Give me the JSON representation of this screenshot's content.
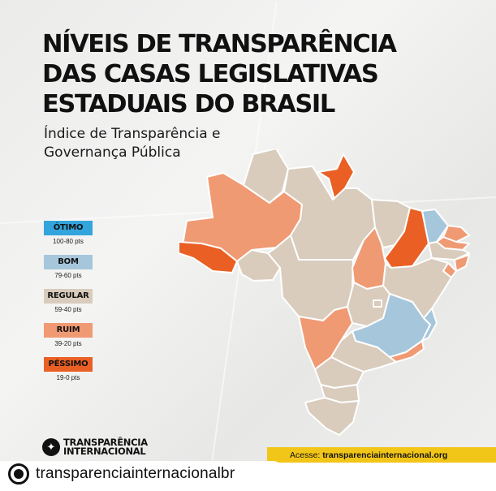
{
  "title": "NÍVEIS DE TRANSPARÊNCIA\nDAS CASAS LEGISLATIVAS\nESTADUAIS DO BRASIL",
  "subtitle": "Índice de Transparência e Governança Pública",
  "legend": [
    {
      "label": "ÓTIMO",
      "range": "100-80 pts",
      "color": "#33a5dc"
    },
    {
      "label": "BOM",
      "range": "79-60 pts",
      "color": "#a6c6dc"
    },
    {
      "label": "REGULAR",
      "range": "59-40 pts",
      "color": "#d9ccbc"
    },
    {
      "label": "RUIM",
      "range": "39-20 pts",
      "color": "#f09a73"
    },
    {
      "label": "PÉSSIMO",
      "range": "19-0 pts",
      "color": "#ea6024"
    }
  ],
  "map_colors": {
    "bom": "#a6c6dc",
    "regular": "#d9ccbc",
    "ruim": "#f09a73",
    "pessimo": "#ea6024",
    "border": "#ffffff"
  },
  "logo": {
    "line1": "TRANSPARÊNCIA",
    "line2": "INTERNACIONAL",
    "icon": "ti-logo-icon"
  },
  "footer": {
    "label": "Acesse: ",
    "url": "transparenciainternacional.org",
    "color": "#f2c618"
  },
  "account": {
    "handle": "transparenciainternacionalbr",
    "icon": "reshare-icon"
  }
}
